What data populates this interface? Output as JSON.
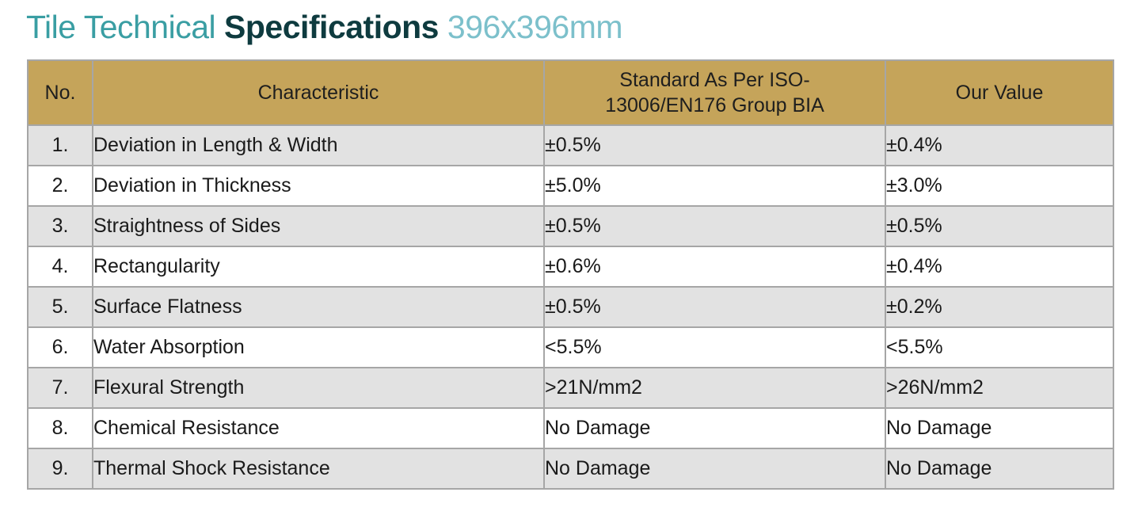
{
  "title": {
    "part1": "Tile Technical ",
    "part2": "Specifications",
    "part3": " 396x396mm"
  },
  "table": {
    "headers": {
      "no": "No.",
      "characteristic": "Characteristic",
      "standard": "Standard As Per ISO-13006/EN176 Group BIA",
      "our_value": "Our Value"
    },
    "rows": [
      {
        "no": "1.",
        "characteristic": "Deviation in Length & Width",
        "standard": "±0.5%",
        "our_value": "±0.4%"
      },
      {
        "no": "2.",
        "characteristic": "Deviation in Thickness",
        "standard": "±5.0%",
        "our_value": "±3.0%"
      },
      {
        "no": "3.",
        "characteristic": "Straightness of Sides",
        "standard": "±0.5%",
        "our_value": "±0.5%"
      },
      {
        "no": "4.",
        "characteristic": "Rectangularity",
        "standard": "±0.6%",
        "our_value": "±0.4%"
      },
      {
        "no": "5.",
        "characteristic": "Surface Flatness",
        "standard": "±0.5%",
        "our_value": "±0.2%"
      },
      {
        "no": "6.",
        "characteristic": "Water Absorption",
        "standard": "<5.5%",
        "our_value": "<5.5%"
      },
      {
        "no": "7.",
        "characteristic": "Flexural Strength",
        "standard": ">21N/mm2",
        "our_value": ">26N/mm2"
      },
      {
        "no": "8.",
        "characteristic": "Chemical Resistance",
        "standard": "No Damage",
        "our_value": "No Damage"
      },
      {
        "no": "9.",
        "characteristic": "Thermal Shock Resistance",
        "standard": "No Damage",
        "our_value": "No Damage"
      }
    ]
  }
}
